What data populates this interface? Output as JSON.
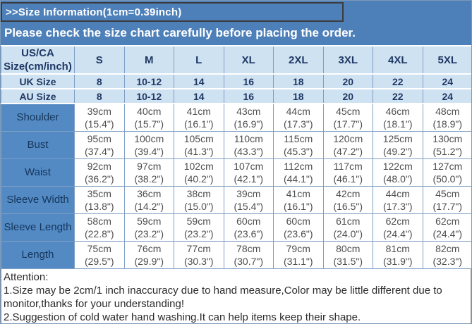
{
  "banner": {
    "title": ">>Size Information(1cm=0.39inch)",
    "subtitle": "Please check the size chart carefully before placing the order."
  },
  "table": {
    "header": {
      "label": "US/CA\nSize(cm/inch)",
      "sizes": [
        "S",
        "M",
        "L",
        "XL",
        "2XL",
        "3XL",
        "4XL",
        "5XL"
      ]
    },
    "uk_row": {
      "label": "UK Size",
      "values": [
        "8",
        "10-12",
        "14",
        "16",
        "18",
        "20",
        "22",
        "24"
      ]
    },
    "au_row": {
      "label": "AU Size",
      "values": [
        "8",
        "10-12",
        "14",
        "16",
        "18",
        "20",
        "22",
        "24"
      ]
    },
    "measurement_rows": [
      {
        "label": "Shoulder",
        "cells": [
          "39cm\n(15.4\")",
          "40cm\n(15.7\")",
          "41cm\n(16.1\")",
          "43cm\n(16.9\")",
          "44cm\n(17.3\")",
          "45cm\n(17.7\")",
          "46cm\n(18.1\")",
          "48cm\n(18.9\")"
        ]
      },
      {
        "label": "Bust",
        "cells": [
          "95cm\n(37.4\")",
          "100cm\n(39.4\")",
          "105cm\n(41.3\")",
          "110cm\n(43.3\")",
          "115cm\n(45.3\")",
          "120cm\n(47.2\")",
          "125cm\n(49.2\")",
          "130cm\n(51.2\")"
        ]
      },
      {
        "label": "Waist",
        "cells": [
          "92cm\n(36.2\")",
          "97cm\n(38.2\")",
          "102cm\n(40.2\")",
          "107cm\n(42.1\")",
          "112cm\n(44.1\")",
          "117cm\n(46.1\")",
          "122cm\n(48.0\")",
          "127cm\n(50.0\")"
        ]
      },
      {
        "label": "Sleeve Width",
        "cells": [
          "35cm\n(13.8\")",
          "36cm\n(14.2\")",
          "38cm\n(15.0\")",
          "39cm\n(15.4\")",
          "41cm\n(16.1\")",
          "42cm\n(16.5\")",
          "44cm\n(17.3\")",
          "45cm\n(17.7\")"
        ]
      },
      {
        "label": "Sleeve Length",
        "cells": [
          "58cm\n(22.8\")",
          "59cm\n(23.2\")",
          "59cm\n(23.2\")",
          "60cm\n(23.6\")",
          "60cm\n(23.6\")",
          "61cm\n(24.0\")",
          "62cm\n(24.4\")",
          "62cm\n(24.4\")"
        ]
      },
      {
        "label": "Length",
        "cells": [
          "75cm\n(29.5\")",
          "76cm\n(29.9\")",
          "77cm\n(30.3\")",
          "78cm\n(30.7\")",
          "79cm\n(31.1\")",
          "80cm\n(31.5\")",
          "81cm\n(31.9\")",
          "82cm\n(32.3\")"
        ]
      }
    ]
  },
  "attention": {
    "heading": "Attention:",
    "lines": [
      "1.Size may be 2cm/1 inch inaccuracy due to hand measure,Color may be little different due to monitor,thanks for your understanding!",
      "2.Suggestion of cold water hand washing.It can help items keep their shape."
    ]
  },
  "colors": {
    "banner_blue": "#4d7fb8",
    "header_light_blue": "#cfe2f2",
    "label_cell_blue": "#538ac4",
    "header_text_navy": "#1f3864",
    "data_text_gray": "#4d4d4d"
  }
}
